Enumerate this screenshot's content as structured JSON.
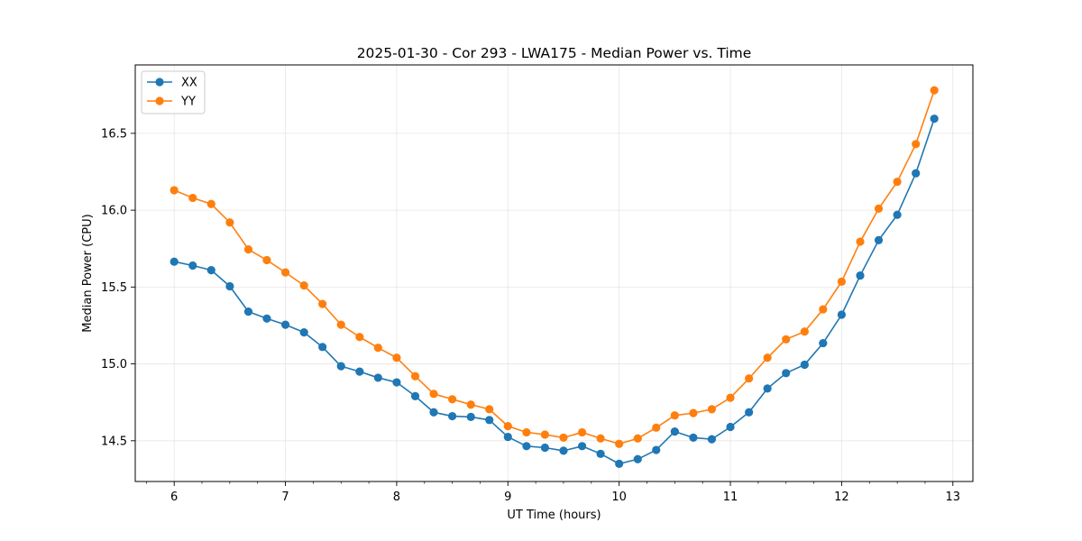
{
  "chart_data": {
    "type": "line",
    "title": "2025-01-30 - Cor 293 - LWA175 - Median Power vs. Time",
    "xlabel": "UT Time (hours)",
    "ylabel": "Median Power (CPU)",
    "xlim": [
      5.65,
      13.18
    ],
    "ylim": [
      14.235,
      16.945
    ],
    "xticks": [
      6,
      7,
      8,
      9,
      10,
      11,
      12,
      13
    ],
    "yticks": [
      14.5,
      15.0,
      15.5,
      16.0,
      16.5
    ],
    "ytick_labels": [
      "14.5",
      "15.0",
      "15.5",
      "16.0",
      "16.5"
    ],
    "grid": true,
    "legend_position": "upper-left",
    "x": [
      6.0,
      6.167,
      6.333,
      6.5,
      6.667,
      6.833,
      7.0,
      7.167,
      7.333,
      7.5,
      7.667,
      7.833,
      8.0,
      8.167,
      8.333,
      8.5,
      8.667,
      8.833,
      9.0,
      9.167,
      9.333,
      9.5,
      9.667,
      9.833,
      10.0,
      10.167,
      10.333,
      10.5,
      10.667,
      10.833,
      11.0,
      11.167,
      11.333,
      11.5,
      11.667,
      11.833,
      12.0,
      12.167,
      12.333,
      12.5,
      12.667,
      12.833
    ],
    "series": [
      {
        "name": "XX",
        "color": "#1f77b4",
        "values": [
          15.665,
          15.64,
          15.61,
          15.505,
          15.34,
          15.295,
          15.255,
          15.205,
          15.11,
          14.985,
          14.95,
          14.91,
          14.88,
          14.79,
          14.685,
          14.66,
          14.655,
          14.635,
          14.525,
          14.465,
          14.455,
          14.435,
          14.465,
          14.415,
          14.35,
          14.38,
          14.44,
          14.56,
          14.52,
          14.51,
          14.59,
          14.685,
          14.84,
          14.94,
          14.995,
          15.135,
          15.32,
          15.575,
          15.805,
          15.97,
          16.24,
          16.595
        ]
      },
      {
        "name": "YY",
        "color": "#ff7f0e",
        "values": [
          16.13,
          16.08,
          16.04,
          15.92,
          15.745,
          15.675,
          15.595,
          15.51,
          15.39,
          15.255,
          15.175,
          15.105,
          15.04,
          14.92,
          14.805,
          14.77,
          14.735,
          14.705,
          14.595,
          14.555,
          14.54,
          14.52,
          14.555,
          14.515,
          14.48,
          14.515,
          14.585,
          14.665,
          14.68,
          14.705,
          14.78,
          14.905,
          15.04,
          15.16,
          15.21,
          15.355,
          15.535,
          15.795,
          16.01,
          16.185,
          16.43,
          16.78
        ]
      }
    ]
  }
}
